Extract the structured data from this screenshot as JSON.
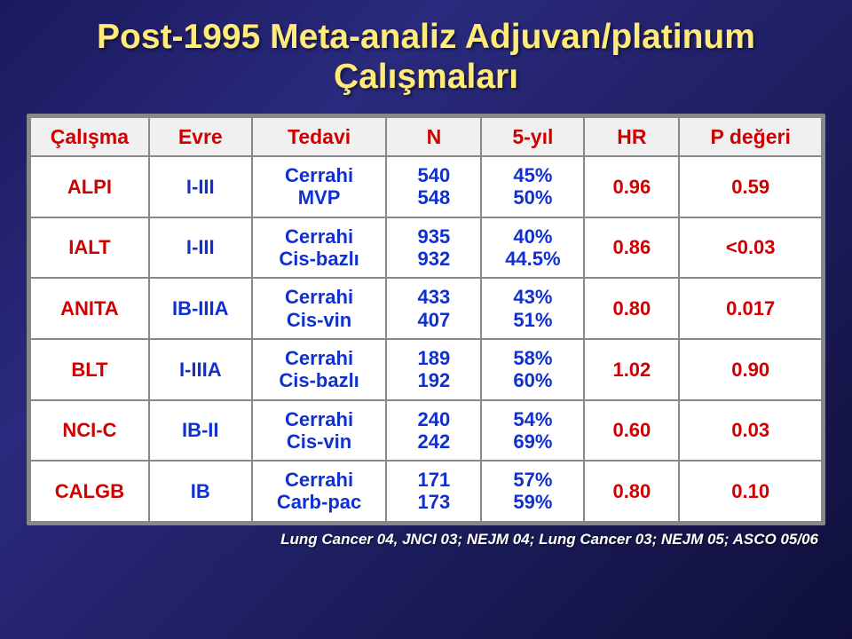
{
  "title_line1": "Post-1995 Meta-analiz Adjuvan/platinum",
  "title_line2": "Çalışmaları",
  "headers": {
    "study": "Çalışma",
    "stage": "Evre",
    "tx": "Tedavi",
    "n": "N",
    "y5": "5-yıl",
    "hr": "HR",
    "p": "P değeri"
  },
  "rows": [
    {
      "study": "ALPI",
      "stage": "I-III",
      "tx1": "Cerrahi",
      "tx2": "MVP",
      "n1": "540",
      "n2": "548",
      "y1": "45%",
      "y2": "50%",
      "hr": "0.96",
      "p": "0.59"
    },
    {
      "study": "IALT",
      "stage": "I-III",
      "tx1": "Cerrahi",
      "tx2": "Cis-bazlı",
      "n1": "935",
      "n2": "932",
      "y1": "40%",
      "y2": "44.5%",
      "hr": "0.86",
      "p": "<0.03"
    },
    {
      "study": "ANITA",
      "stage": "IB-IIIA",
      "tx1": "Cerrahi",
      "tx2": "Cis-vin",
      "n1": "433",
      "n2": "407",
      "y1": "43%",
      "y2": "51%",
      "hr": "0.80",
      "p": "0.017"
    },
    {
      "study": "BLT",
      "stage": "I-IIIA",
      "tx1": "Cerrahi",
      "tx2": "Cis-bazlı",
      "n1": "189",
      "n2": "192",
      "y1": "58%",
      "y2": "60%",
      "hr": "1.02",
      "p": "0.90"
    },
    {
      "study": "NCI-C",
      "stage": "IB-II",
      "tx1": "Cerrahi",
      "tx2": "Cis-vin",
      "n1": "240",
      "n2": "242",
      "y1": "54%",
      "y2": "69%",
      "hr": "0.60",
      "p": "0.03"
    },
    {
      "study": "CALGB",
      "stage": "IB",
      "tx1": "Cerrahi",
      "tx2": "Carb-pac",
      "n1": "171",
      "n2": "173",
      "y1": "57%",
      "y2": "59%",
      "hr": "0.80",
      "p": "0.10"
    }
  ],
  "footnote": "Lung Cancer 04, JNCI 03; NEJM 04; Lung Cancer 03; NEJM 05; ASCO 05/06",
  "colors": {
    "title": "#ffeb7a",
    "red": "#d00000",
    "blue": "#1030d0",
    "border": "#888888",
    "bg_grad_a": "#1a1a5e",
    "bg_grad_b": "#0f0f3a"
  },
  "col_widths_pct": [
    15,
    13,
    17,
    12,
    13,
    12,
    18
  ]
}
